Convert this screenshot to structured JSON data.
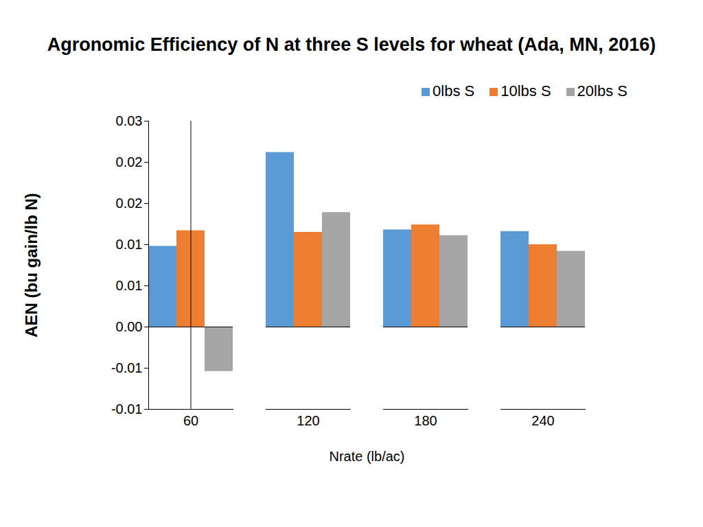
{
  "chart_data": {
    "type": "bar",
    "title": "Agronomic Efficiency of N at three S levels for wheat (Ada, MN, 2016)",
    "x_label": "Nrate (lb/ac)",
    "y_label": "AEN (bu gain/lb N)",
    "categories": [
      "60",
      "120",
      "180",
      "240"
    ],
    "series": [
      {
        "name": "0lbs S",
        "color": "#5b9bd5",
        "values": [
          0.0098,
          0.0212,
          0.0118,
          0.0116
        ]
      },
      {
        "name": "10lbs S",
        "color": "#ed7d31",
        "values": [
          0.0117,
          0.0115,
          0.0124,
          0.01
        ]
      },
      {
        "name": "20lbs S",
        "color": "#a5a5a5",
        "values": [
          -0.0054,
          0.0139,
          0.0111,
          0.0092
        ]
      }
    ],
    "ylim": [
      -0.01,
      0.025
    ],
    "yticks": [
      {
        "value": -0.01,
        "label": "-0.01"
      },
      {
        "value": -0.005,
        "label": "-0.01"
      },
      {
        "value": 0,
        "label": "0.00"
      },
      {
        "value": 0.005,
        "label": "0.01"
      },
      {
        "value": 0.01,
        "label": "0.01"
      },
      {
        "value": 0.015,
        "label": "0.02"
      },
      {
        "value": 0.02,
        "label": "0.02"
      },
      {
        "value": 0.025,
        "label": "0.03"
      }
    ],
    "legend": "top-right",
    "grid": false
  }
}
